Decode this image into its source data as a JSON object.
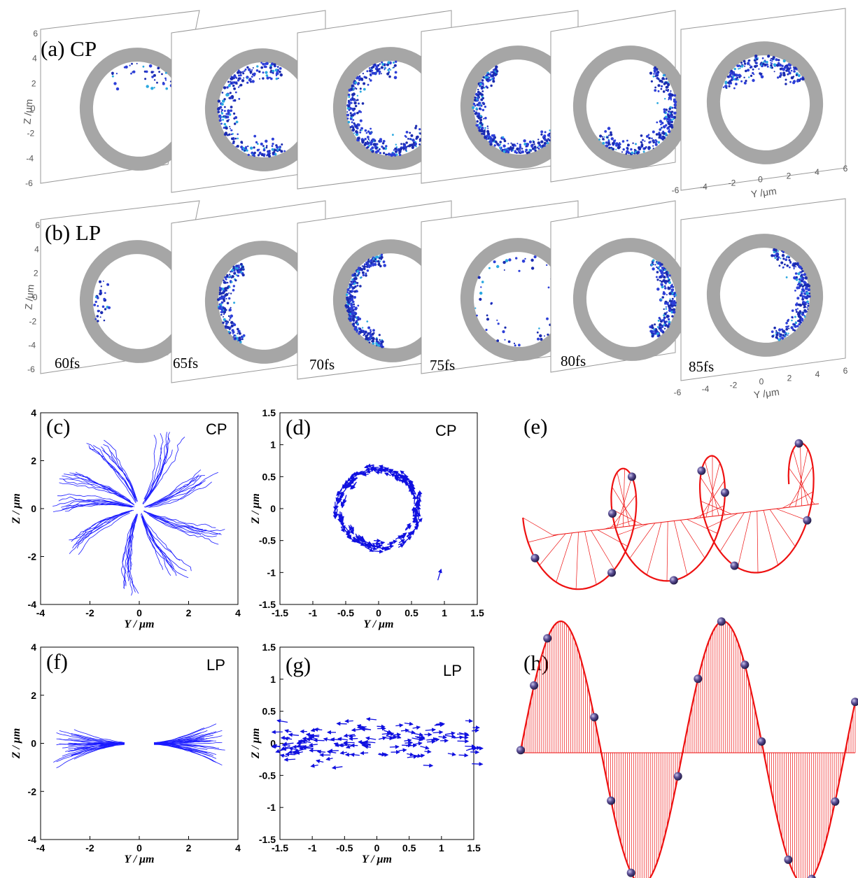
{
  "rows": [
    {
      "key": "a",
      "label": "(a) CP",
      "density": [
        {
          "n": 40,
          "a0": 20,
          "a1": 140,
          "spread": 1.0
        },
        {
          "n": 260,
          "a0": 60,
          "a1": 300,
          "spread": 0.9
        },
        {
          "n": 340,
          "a0": 80,
          "a1": 340,
          "spread": 0.8
        },
        {
          "n": 360,
          "a0": 120,
          "a1": 360,
          "spread": 0.55
        },
        {
          "n": 260,
          "a0": 220,
          "a1": 420,
          "spread": 0.75
        },
        {
          "n": 180,
          "a0": 30,
          "a1": 160,
          "spread": 0.9
        }
      ]
    },
    {
      "key": "b",
      "label": "(b) LP",
      "density": [
        {
          "n": 30,
          "a0": 150,
          "a1": 210,
          "spread": 0.9
        },
        {
          "n": 180,
          "a0": 120,
          "a1": 240,
          "spread": 0.7
        },
        {
          "n": 320,
          "a0": 100,
          "a1": 260,
          "spread": 0.55
        },
        {
          "n": 60,
          "a0": 0,
          "a1": 360,
          "spread": 0.9
        },
        {
          "n": 220,
          "a0": -60,
          "a1": 60,
          "spread": 0.7
        },
        {
          "n": 240,
          "a0": -80,
          "a1": 80,
          "spread": 0.7
        }
      ]
    }
  ],
  "times": [
    "60fs",
    "65fs",
    "70fs",
    "75fs",
    "80fs",
    "85fs"
  ],
  "slice_axes": {
    "zlabel": "Z /μm",
    "ylabel": "Y /μm",
    "zticks": [
      "6",
      "4",
      "2",
      "0",
      "-2",
      "-4",
      "-6"
    ],
    "yticks": [
      "-6",
      "-4",
      "-2",
      "0",
      "2",
      "4",
      "6"
    ]
  },
  "panels": {
    "c": {
      "label": "(c)",
      "tag": "CP"
    },
    "d": {
      "label": "(d)",
      "tag": "CP"
    },
    "e": {
      "label": "(e)"
    },
    "f": {
      "label": "(f)",
      "tag": "LP"
    },
    "g": {
      "label": "(g)",
      "tag": "LP"
    },
    "h": {
      "label": "(h)"
    }
  },
  "colors": {
    "trajectory": "#1a1aff",
    "arrow": "#1010e0",
    "ring": "#a6a6a6",
    "wave": "#ee1111",
    "bead": "#3a2f6e"
  },
  "chart_data": [
    {
      "panel": "c",
      "type": "line",
      "title": "",
      "xlabel": "Y / μm",
      "ylabel": "Z / μm",
      "xlim": [
        -4,
        4
      ],
      "ylim": [
        -4,
        4
      ],
      "xticks": [
        "-4",
        "-2",
        "0",
        "2",
        "4"
      ],
      "yticks": [
        "4",
        "2",
        "0",
        "-2",
        "-4"
      ],
      "description_series": "radial electron trajectories in all directions",
      "count": 80
    },
    {
      "panel": "d",
      "type": "quiver",
      "title": "",
      "xlabel": "Y / μm",
      "ylabel": "Z / μm",
      "xlim": [
        -1.5,
        1.5
      ],
      "ylim": [
        -1.5,
        1.5
      ],
      "xticks": [
        "-1.5",
        "-1",
        "-0.5",
        "0",
        "0.5",
        "1",
        "1.5"
      ],
      "yticks": [
        "1.5",
        "1",
        "0.5",
        "0",
        "-0.5",
        "-1",
        "-1.5"
      ],
      "count": 180,
      "ring_radius": 0.6
    },
    {
      "panel": "f",
      "type": "line",
      "title": "",
      "xlabel": "Y / μm",
      "ylabel": "Z / μm",
      "xlim": [
        -4,
        4
      ],
      "ylim": [
        -4,
        4
      ],
      "xticks": [
        "-4",
        "-2",
        "0",
        "2",
        "4"
      ],
      "yticks": [
        "4",
        "2",
        "0",
        "-2",
        "-4"
      ],
      "count": 60
    },
    {
      "panel": "g",
      "type": "quiver",
      "title": "",
      "xlabel": "Y / μm",
      "ylabel": "Z / μm",
      "xlim": [
        -1.5,
        1.5
      ],
      "ylim": [
        -1.5,
        1.5
      ],
      "xticks": [
        "-1.5",
        "-1",
        "-0.5",
        "0",
        "0.5",
        "1",
        "1.5"
      ],
      "yticks": [
        "1.5",
        "1",
        "0.5",
        "0",
        "-0.5",
        "-1",
        "-1.5"
      ],
      "count": 150
    }
  ]
}
